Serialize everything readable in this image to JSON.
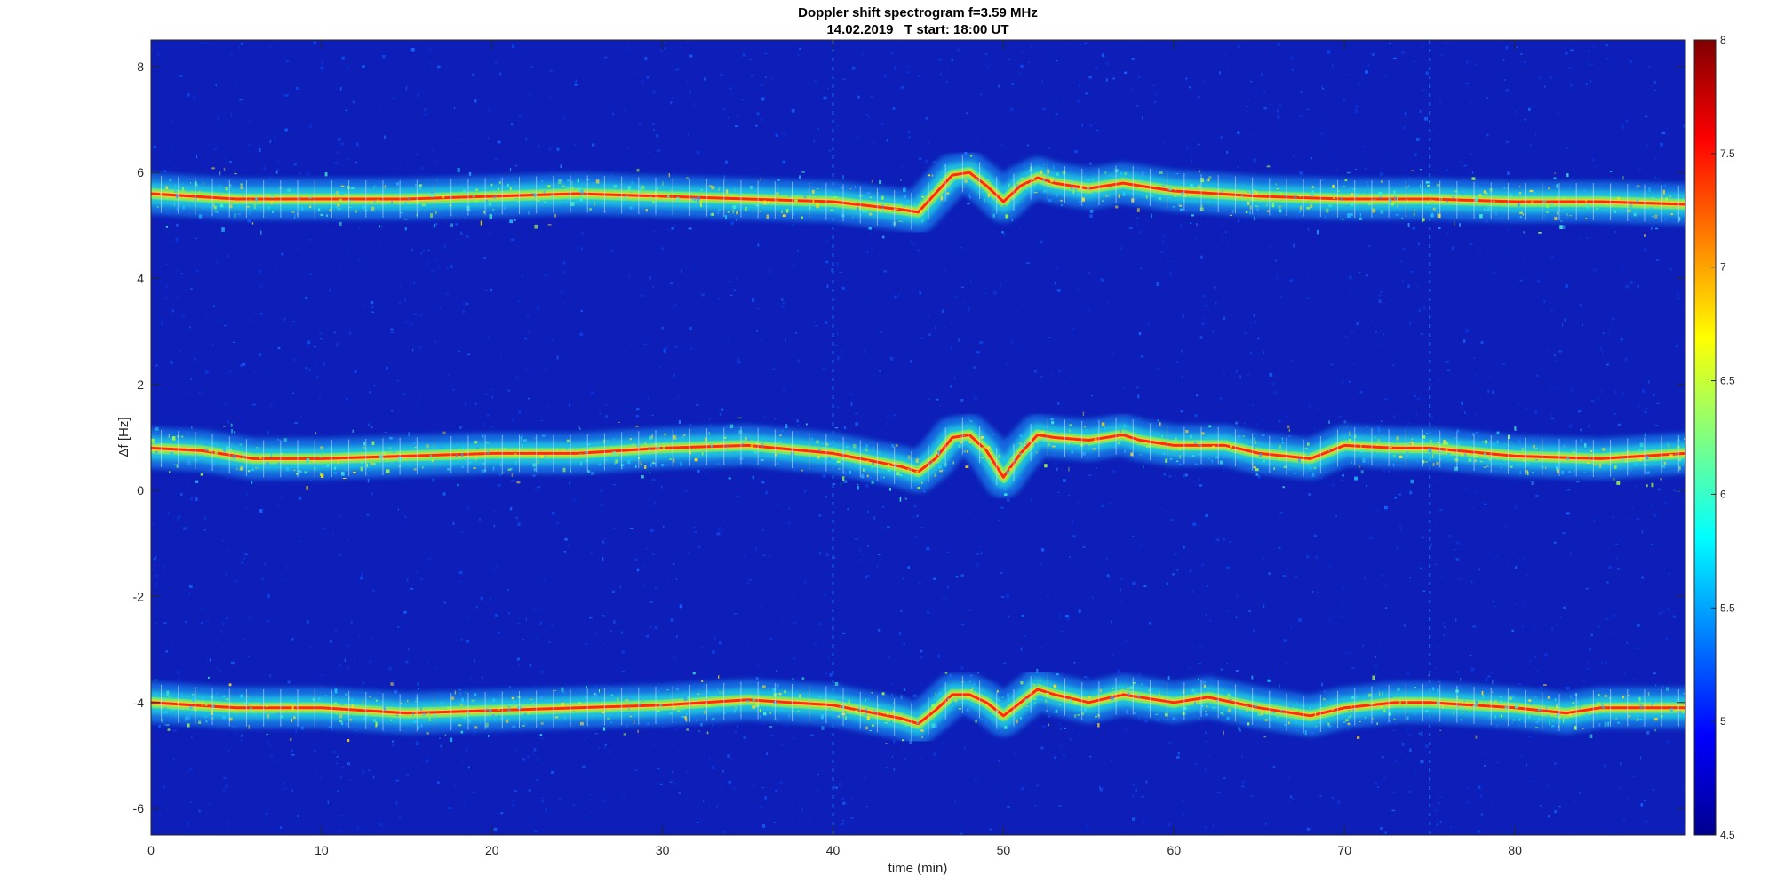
{
  "chart_data": {
    "type": "heatmap",
    "title": "Doppler shift spectrogram f=3.59 MHz",
    "subtitle": "14.02.2019   T start: 18:00 UT",
    "xlabel": "time (min)",
    "ylabel": "Δf [Hz]",
    "xlim": [
      0,
      90
    ],
    "ylim": [
      -6.5,
      8.5
    ],
    "xticks": [
      "0",
      "10",
      "20",
      "30",
      "40",
      "50",
      "60",
      "70",
      "80"
    ],
    "yticks": [
      "-6",
      "-4",
      "-2",
      "0",
      "2",
      "4",
      "6",
      "8"
    ],
    "colorbar": {
      "colormap": "jet",
      "clim": [
        4.5,
        8
      ],
      "ticks": [
        "4.5",
        "5",
        "5.5",
        "6",
        "6.5",
        "7",
        "7.5",
        "8"
      ]
    },
    "background_color": "#0d1fb8",
    "traces": [
      {
        "base_level": 5.55,
        "points": [
          [
            0,
            5.6
          ],
          [
            5,
            5.5
          ],
          [
            10,
            5.5
          ],
          [
            15,
            5.5
          ],
          [
            20,
            5.55
          ],
          [
            25,
            5.6
          ],
          [
            30,
            5.55
          ],
          [
            35,
            5.5
          ],
          [
            40,
            5.45
          ],
          [
            44,
            5.3
          ],
          [
            45,
            5.25
          ],
          [
            46,
            5.6
          ],
          [
            47,
            5.95
          ],
          [
            48,
            6.0
          ],
          [
            49,
            5.75
          ],
          [
            50,
            5.45
          ],
          [
            51,
            5.75
          ],
          [
            52,
            5.9
          ],
          [
            53,
            5.8
          ],
          [
            55,
            5.7
          ],
          [
            57,
            5.8
          ],
          [
            58,
            5.75
          ],
          [
            60,
            5.65
          ],
          [
            65,
            5.55
          ],
          [
            70,
            5.5
          ],
          [
            75,
            5.5
          ],
          [
            80,
            5.45
          ],
          [
            85,
            5.45
          ],
          [
            90,
            5.4
          ]
        ]
      },
      {
        "base_level": 0.75,
        "points": [
          [
            0,
            0.8
          ],
          [
            3,
            0.75
          ],
          [
            6,
            0.6
          ],
          [
            10,
            0.6
          ],
          [
            15,
            0.65
          ],
          [
            20,
            0.7
          ],
          [
            25,
            0.7
          ],
          [
            30,
            0.8
          ],
          [
            35,
            0.85
          ],
          [
            40,
            0.7
          ],
          [
            44,
            0.45
          ],
          [
            45,
            0.35
          ],
          [
            46,
            0.6
          ],
          [
            47,
            1.0
          ],
          [
            48,
            1.05
          ],
          [
            49,
            0.75
          ],
          [
            50,
            0.25
          ],
          [
            51,
            0.7
          ],
          [
            52,
            1.05
          ],
          [
            53,
            1.0
          ],
          [
            55,
            0.95
          ],
          [
            57,
            1.05
          ],
          [
            58,
            0.95
          ],
          [
            60,
            0.85
          ],
          [
            63,
            0.85
          ],
          [
            65,
            0.7
          ],
          [
            68,
            0.6
          ],
          [
            70,
            0.85
          ],
          [
            73,
            0.8
          ],
          [
            75,
            0.8
          ],
          [
            80,
            0.65
          ],
          [
            85,
            0.6
          ],
          [
            90,
            0.7
          ]
        ]
      },
      {
        "base_level": -4.1,
        "points": [
          [
            0,
            -4.0
          ],
          [
            5,
            -4.1
          ],
          [
            10,
            -4.1
          ],
          [
            15,
            -4.2
          ],
          [
            20,
            -4.15
          ],
          [
            25,
            -4.1
          ],
          [
            30,
            -4.05
          ],
          [
            35,
            -3.95
          ],
          [
            40,
            -4.05
          ],
          [
            44,
            -4.3
          ],
          [
            45,
            -4.4
          ],
          [
            46,
            -4.15
          ],
          [
            47,
            -3.85
          ],
          [
            48,
            -3.85
          ],
          [
            49,
            -4.0
          ],
          [
            50,
            -4.25
          ],
          [
            51,
            -4.0
          ],
          [
            52,
            -3.75
          ],
          [
            53,
            -3.85
          ],
          [
            55,
            -4.0
          ],
          [
            57,
            -3.85
          ],
          [
            58,
            -3.9
          ],
          [
            60,
            -4.0
          ],
          [
            62,
            -3.9
          ],
          [
            65,
            -4.1
          ],
          [
            68,
            -4.25
          ],
          [
            70,
            -4.1
          ],
          [
            73,
            -4.0
          ],
          [
            75,
            -4.0
          ],
          [
            80,
            -4.1
          ],
          [
            83,
            -4.2
          ],
          [
            85,
            -4.1
          ],
          [
            90,
            -4.1
          ]
        ]
      }
    ],
    "vertical_artifacts_min": [
      40,
      75
    ]
  }
}
